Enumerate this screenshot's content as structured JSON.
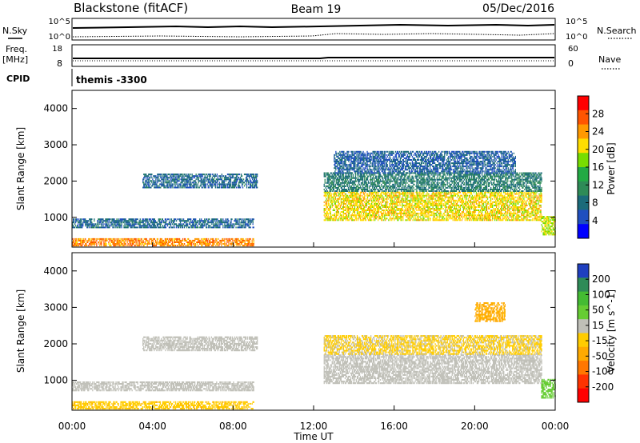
{
  "header": {
    "station": "Blackstone (fitACF)",
    "beam": "Beam 19",
    "date": "05/Dec/2016"
  },
  "status_panels": {
    "nsky_label": "N.Sky",
    "nsearch_label": "N.Search",
    "freq_label": "Freq.",
    "freq_unit": "[MHz]",
    "nave_label": "Nave",
    "cpid_label": "CPID",
    "cpid_value": "themis -3300",
    "noise_ticks_left": [
      "10^5",
      "10^0"
    ],
    "noise_ticks_right": [
      "10^5",
      "10^0"
    ],
    "freq_ticks": [
      "18",
      "8"
    ],
    "nave_ticks": [
      "60",
      "0"
    ]
  },
  "colorbars": {
    "power": {
      "label": "Power [dB]",
      "ticks": [
        "28",
        "24",
        "20",
        "16",
        "12",
        "8",
        "4"
      ],
      "colors": [
        "#ff0000",
        "#ff5500",
        "#ff9900",
        "#ffdd00",
        "#77dd00",
        "#22aa44",
        "#2e8b57",
        "#1a6b7a",
        "#1f4fbf",
        "#0000ff"
      ]
    },
    "velocity": {
      "label": "Velocity [m s^-1]",
      "ticks": [
        "200",
        "100",
        "50",
        "15",
        "-15",
        "-50",
        "-100",
        "-200"
      ],
      "colors": [
        "#1f3fbf",
        "#2e8b57",
        "#44bb33",
        "#66cc33",
        "#c0c0b8",
        "#ffcc00",
        "#ffaa00",
        "#ff7700",
        "#ff3300",
        "#ff0000"
      ]
    }
  },
  "chart_data": [
    {
      "type": "heatmap",
      "panel": "power",
      "ylabel": "Slant Range [km]",
      "xlim": [
        "00:00",
        "24:00"
      ],
      "ylim": [
        180,
        4500
      ],
      "yticks": [
        1000,
        2000,
        3000,
        4000
      ],
      "xticks": [
        "00:00",
        "04:00",
        "08:00",
        "12:00",
        "16:00",
        "20:00",
        "00:00"
      ],
      "xlabel": "Time UT",
      "scatter_regions": [
        {
          "t0": 0.0,
          "t1": 9.0,
          "r0": 200,
          "r1": 400,
          "value": 24
        },
        {
          "t0": 0.0,
          "t1": 9.0,
          "r0": 700,
          "r1": 950,
          "value": 6
        },
        {
          "t0": 3.5,
          "t1": 9.2,
          "r0": 1800,
          "r1": 2200,
          "value": 6
        },
        {
          "t0": 12.5,
          "t1": 23.3,
          "r0": 900,
          "r1": 1700,
          "value": 20
        },
        {
          "t0": 12.5,
          "t1": 23.3,
          "r0": 1700,
          "r1": 2200,
          "value": 8
        },
        {
          "t0": 13.0,
          "t1": 22.0,
          "r0": 2200,
          "r1": 2800,
          "value": 5
        },
        {
          "t0": 23.3,
          "t1": 24.0,
          "r0": 500,
          "r1": 1000,
          "value": 18
        }
      ]
    },
    {
      "type": "heatmap",
      "panel": "velocity",
      "ylabel": "Slant Range [km]",
      "xlim": [
        "00:00",
        "24:00"
      ],
      "ylim": [
        180,
        4500
      ],
      "yticks": [
        1000,
        2000,
        3000,
        4000
      ],
      "xticks": [
        "00:00",
        "04:00",
        "08:00",
        "12:00",
        "16:00",
        "20:00",
        "00:00"
      ],
      "xlabel": "Time UT",
      "scatter_regions": [
        {
          "t0": 0.0,
          "t1": 9.0,
          "r0": 200,
          "r1": 400,
          "value": -40
        },
        {
          "t0": 0.0,
          "t1": 9.0,
          "r0": 700,
          "r1": 950,
          "value": 0
        },
        {
          "t0": 3.5,
          "t1": 9.2,
          "r0": 1800,
          "r1": 2200,
          "value": 0
        },
        {
          "t0": 12.5,
          "t1": 23.3,
          "r0": 900,
          "r1": 1700,
          "value": 0
        },
        {
          "t0": 12.5,
          "t1": 23.3,
          "r0": 1700,
          "r1": 2200,
          "value": -20
        },
        {
          "t0": 20.0,
          "t1": 21.5,
          "r0": 2600,
          "r1": 3100,
          "value": -60
        },
        {
          "t0": 23.3,
          "t1": 24.0,
          "r0": 500,
          "r1": 1000,
          "value": 30
        }
      ]
    }
  ]
}
